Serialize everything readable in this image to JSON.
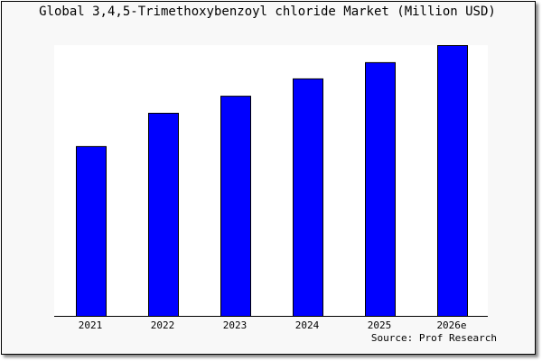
{
  "chart_data": {
    "type": "bar",
    "title": "Global 3,4,5-Trimethoxybenzoyl chloride Market (Million USD)",
    "categories": [
      "2021",
      "2022",
      "2023",
      "2024",
      "2025",
      "2026e"
    ],
    "values": [
      62.7,
      75.0,
      81.3,
      87.7,
      93.7,
      100
    ],
    "xlabel": "",
    "ylabel": "",
    "ylim": [
      0,
      100
    ],
    "grid": false,
    "bar_color": "#0000ff",
    "source": "Source: Prof Research"
  }
}
